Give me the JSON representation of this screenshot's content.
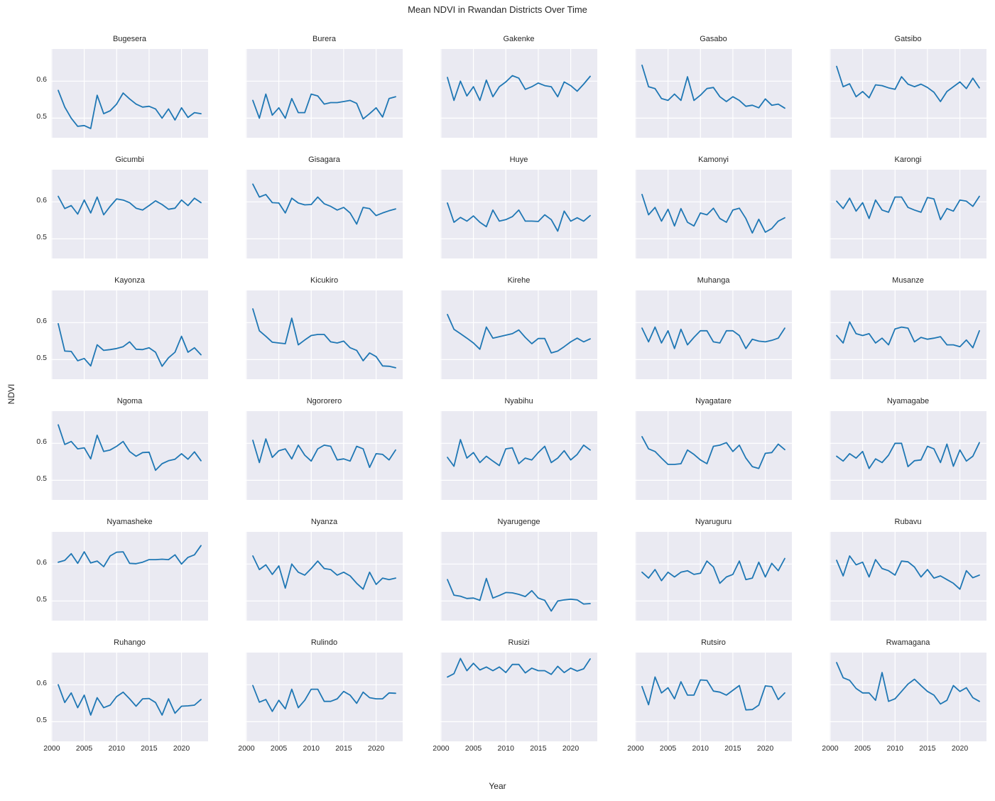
{
  "figure": {
    "title": "Mean NDVI in Rwandan Districts Over Time",
    "xlabel": "Year",
    "ylabel": "NDVI"
  },
  "chart_data": {
    "type": "line",
    "title": "Mean NDVI in Rwandan Districts Over Time",
    "xlabel": "Year",
    "ylabel": "NDVI",
    "layout": "facet-grid 6 rows x 5 cols, shared axes, seaborn darkgrid, grid on, no legend",
    "x_ticks": [
      2000,
      2005,
      2010,
      2015,
      2020
    ],
    "y_ticks": [
      0.6,
      0.5
    ],
    "x_range": [
      1999.9,
      2024.1
    ],
    "y_range": [
      0.447,
      0.687
    ],
    "line_color": "#1f77b4",
    "panel_bg": "#eaeaf2",
    "grid_color": "#ffffff",
    "text_color": "#262626",
    "x": [
      2001,
      2002,
      2003,
      2004,
      2005,
      2006,
      2007,
      2008,
      2009,
      2010,
      2011,
      2012,
      2013,
      2014,
      2015,
      2016,
      2017,
      2018,
      2019,
      2020,
      2021,
      2022,
      2023
    ],
    "series": [
      {
        "name": "Bugesera",
        "values": [
          0.575,
          0.53,
          0.5,
          0.478,
          0.48,
          0.472,
          0.562,
          0.512,
          0.52,
          0.538,
          0.568,
          0.552,
          0.538,
          0.53,
          0.532,
          0.525,
          0.5,
          0.525,
          0.495,
          0.528,
          0.502,
          0.515,
          0.512
        ]
      },
      {
        "name": "Burera",
        "values": [
          0.548,
          0.5,
          0.565,
          0.508,
          0.528,
          0.5,
          0.553,
          0.515,
          0.515,
          0.565,
          0.56,
          0.538,
          0.542,
          0.542,
          0.545,
          0.548,
          0.54,
          0.498,
          0.512,
          0.528,
          0.503,
          0.553,
          0.558
        ]
      },
      {
        "name": "Gakenke",
        "values": [
          0.61,
          0.548,
          0.6,
          0.56,
          0.585,
          0.548,
          0.603,
          0.558,
          0.585,
          0.598,
          0.615,
          0.608,
          0.578,
          0.585,
          0.595,
          0.588,
          0.585,
          0.558,
          0.598,
          0.588,
          0.573,
          0.592,
          0.613
        ]
      },
      {
        "name": "Gasabo",
        "values": [
          0.643,
          0.585,
          0.58,
          0.553,
          0.548,
          0.565,
          0.548,
          0.612,
          0.548,
          0.562,
          0.58,
          0.583,
          0.558,
          0.545,
          0.558,
          0.548,
          0.532,
          0.535,
          0.528,
          0.552,
          0.535,
          0.538,
          0.527
        ]
      },
      {
        "name": "Gatsibo",
        "values": [
          0.64,
          0.585,
          0.593,
          0.558,
          0.572,
          0.555,
          0.59,
          0.588,
          0.582,
          0.578,
          0.612,
          0.592,
          0.585,
          0.592,
          0.583,
          0.57,
          0.545,
          0.572,
          0.585,
          0.598,
          0.58,
          0.608,
          0.582
        ]
      },
      {
        "name": "Gicumbi",
        "values": [
          0.615,
          0.582,
          0.59,
          0.567,
          0.605,
          0.57,
          0.613,
          0.565,
          0.588,
          0.608,
          0.605,
          0.598,
          0.583,
          0.578,
          0.59,
          0.603,
          0.593,
          0.58,
          0.583,
          0.605,
          0.59,
          0.61,
          0.598
        ]
      },
      {
        "name": "Gisagara",
        "values": [
          0.648,
          0.613,
          0.62,
          0.598,
          0.597,
          0.57,
          0.61,
          0.597,
          0.592,
          0.593,
          0.613,
          0.595,
          0.588,
          0.578,
          0.585,
          0.57,
          0.54,
          0.585,
          0.582,
          0.563,
          0.57,
          0.576,
          0.581
        ]
      },
      {
        "name": "Huye",
        "values": [
          0.597,
          0.545,
          0.558,
          0.548,
          0.562,
          0.545,
          0.533,
          0.578,
          0.548,
          0.552,
          0.56,
          0.578,
          0.548,
          0.548,
          0.547,
          0.565,
          0.552,
          0.521,
          0.575,
          0.548,
          0.557,
          0.548,
          0.563
        ]
      },
      {
        "name": "Kamonyi",
        "values": [
          0.62,
          0.565,
          0.585,
          0.548,
          0.58,
          0.535,
          0.582,
          0.545,
          0.535,
          0.57,
          0.565,
          0.583,
          0.555,
          0.545,
          0.578,
          0.583,
          0.555,
          0.516,
          0.553,
          0.518,
          0.528,
          0.548,
          0.557
        ]
      },
      {
        "name": "Karongi",
        "values": [
          0.602,
          0.582,
          0.61,
          0.575,
          0.598,
          0.555,
          0.605,
          0.578,
          0.572,
          0.613,
          0.613,
          0.585,
          0.578,
          0.572,
          0.612,
          0.608,
          0.552,
          0.582,
          0.575,
          0.605,
          0.602,
          0.588,
          0.615
        ]
      },
      {
        "name": "Kayonza",
        "values": [
          0.597,
          0.523,
          0.522,
          0.497,
          0.503,
          0.483,
          0.54,
          0.525,
          0.527,
          0.53,
          0.535,
          0.548,
          0.528,
          0.527,
          0.532,
          0.52,
          0.482,
          0.505,
          0.52,
          0.563,
          0.52,
          0.532,
          0.513
        ]
      },
      {
        "name": "Kicukiro",
        "values": [
          0.637,
          0.578,
          0.563,
          0.547,
          0.545,
          0.543,
          0.612,
          0.54,
          0.553,
          0.565,
          0.568,
          0.568,
          0.548,
          0.545,
          0.55,
          0.532,
          0.525,
          0.497,
          0.518,
          0.508,
          0.483,
          0.482,
          0.478
        ]
      },
      {
        "name": "Kirehe",
        "values": [
          0.622,
          0.582,
          0.57,
          0.558,
          0.545,
          0.528,
          0.588,
          0.558,
          0.562,
          0.566,
          0.57,
          0.58,
          0.56,
          0.543,
          0.557,
          0.557,
          0.518,
          0.523,
          0.535,
          0.548,
          0.558,
          0.548,
          0.556
        ]
      },
      {
        "name": "Muhanga",
        "values": [
          0.585,
          0.548,
          0.588,
          0.545,
          0.578,
          0.53,
          0.582,
          0.54,
          0.56,
          0.578,
          0.578,
          0.548,
          0.545,
          0.578,
          0.578,
          0.565,
          0.53,
          0.555,
          0.55,
          0.548,
          0.552,
          0.558,
          0.585
        ]
      },
      {
        "name": "Musanze",
        "values": [
          0.565,
          0.545,
          0.602,
          0.57,
          0.565,
          0.57,
          0.545,
          0.558,
          0.54,
          0.583,
          0.588,
          0.585,
          0.548,
          0.56,
          0.555,
          0.558,
          0.562,
          0.54,
          0.54,
          0.535,
          0.553,
          0.532,
          0.578
        ]
      },
      {
        "name": "Ngoma",
        "values": [
          0.65,
          0.597,
          0.605,
          0.585,
          0.588,
          0.558,
          0.622,
          0.578,
          0.582,
          0.592,
          0.605,
          0.578,
          0.565,
          0.575,
          0.576,
          0.527,
          0.545,
          0.553,
          0.557,
          0.572,
          0.557,
          0.577,
          0.553
        ]
      },
      {
        "name": "Ngororero",
        "values": [
          0.608,
          0.548,
          0.612,
          0.562,
          0.58,
          0.585,
          0.558,
          0.595,
          0.568,
          0.552,
          0.585,
          0.595,
          0.592,
          0.555,
          0.558,
          0.552,
          0.592,
          0.585,
          0.535,
          0.572,
          0.57,
          0.555,
          0.582
        ]
      },
      {
        "name": "Nyabihu",
        "values": [
          0.562,
          0.538,
          0.61,
          0.56,
          0.575,
          0.548,
          0.565,
          0.552,
          0.54,
          0.585,
          0.588,
          0.545,
          0.56,
          0.555,
          0.575,
          0.592,
          0.548,
          0.56,
          0.58,
          0.555,
          0.57,
          0.595,
          0.582
        ]
      },
      {
        "name": "Nyagatare",
        "values": [
          0.618,
          0.585,
          0.578,
          0.56,
          0.543,
          0.543,
          0.545,
          0.582,
          0.57,
          0.555,
          0.545,
          0.592,
          0.595,
          0.602,
          0.578,
          0.595,
          0.56,
          0.537,
          0.532,
          0.573,
          0.575,
          0.598,
          0.583
        ]
      },
      {
        "name": "Nyamagabe",
        "values": [
          0.565,
          0.552,
          0.572,
          0.56,
          0.578,
          0.532,
          0.558,
          0.548,
          0.568,
          0.6,
          0.6,
          0.537,
          0.553,
          0.555,
          0.592,
          0.585,
          0.548,
          0.598,
          0.538,
          0.582,
          0.552,
          0.565,
          0.602
        ]
      },
      {
        "name": "Nyamasheke",
        "values": [
          0.605,
          0.61,
          0.628,
          0.602,
          0.633,
          0.603,
          0.608,
          0.593,
          0.622,
          0.632,
          0.633,
          0.602,
          0.601,
          0.605,
          0.612,
          0.612,
          0.613,
          0.612,
          0.625,
          0.6,
          0.618,
          0.625,
          0.65
        ]
      },
      {
        "name": "Nyanza",
        "values": [
          0.622,
          0.585,
          0.598,
          0.572,
          0.595,
          0.535,
          0.6,
          0.578,
          0.57,
          0.588,
          0.608,
          0.588,
          0.585,
          0.57,
          0.578,
          0.568,
          0.548,
          0.532,
          0.578,
          0.545,
          0.562,
          0.558,
          0.562
        ]
      },
      {
        "name": "Nyarugenge",
        "values": [
          0.558,
          0.516,
          0.513,
          0.507,
          0.508,
          0.502,
          0.561,
          0.508,
          0.515,
          0.523,
          0.522,
          0.518,
          0.512,
          0.528,
          0.508,
          0.502,
          0.473,
          0.5,
          0.503,
          0.505,
          0.503,
          0.492,
          0.493
        ]
      },
      {
        "name": "Nyaruguru",
        "values": [
          0.578,
          0.562,
          0.585,
          0.555,
          0.578,
          0.565,
          0.578,
          0.582,
          0.572,
          0.575,
          0.608,
          0.592,
          0.548,
          0.565,
          0.572,
          0.608,
          0.558,
          0.562,
          0.605,
          0.565,
          0.602,
          0.582,
          0.615
        ]
      },
      {
        "name": "Rubavu",
        "values": [
          0.61,
          0.568,
          0.622,
          0.598,
          0.605,
          0.565,
          0.612,
          0.588,
          0.582,
          0.57,
          0.608,
          0.606,
          0.592,
          0.565,
          0.585,
          0.562,
          0.568,
          0.558,
          0.548,
          0.532,
          0.582,
          0.563,
          0.57
        ]
      },
      {
        "name": "Ruhango",
        "values": [
          0.6,
          0.552,
          0.578,
          0.538,
          0.572,
          0.518,
          0.565,
          0.538,
          0.545,
          0.568,
          0.58,
          0.562,
          0.542,
          0.562,
          0.563,
          0.552,
          0.518,
          0.562,
          0.523,
          0.542,
          0.543,
          0.545,
          0.56
        ]
      },
      {
        "name": "Rulindo",
        "values": [
          0.598,
          0.553,
          0.56,
          0.528,
          0.558,
          0.535,
          0.588,
          0.538,
          0.558,
          0.588,
          0.588,
          0.555,
          0.555,
          0.562,
          0.582,
          0.572,
          0.55,
          0.58,
          0.565,
          0.562,
          0.562,
          0.578,
          0.577
        ]
      },
      {
        "name": "Rusizi",
        "values": [
          0.621,
          0.63,
          0.671,
          0.638,
          0.658,
          0.64,
          0.648,
          0.638,
          0.648,
          0.633,
          0.655,
          0.655,
          0.632,
          0.645,
          0.638,
          0.638,
          0.628,
          0.65,
          0.633,
          0.645,
          0.637,
          0.643,
          0.67
        ]
      },
      {
        "name": "Rutsiro",
        "values": [
          0.595,
          0.546,
          0.621,
          0.578,
          0.592,
          0.562,
          0.608,
          0.572,
          0.572,
          0.613,
          0.612,
          0.583,
          0.58,
          0.572,
          0.585,
          0.598,
          0.532,
          0.533,
          0.545,
          0.597,
          0.595,
          0.56,
          0.578
        ]
      },
      {
        "name": "Rwamagana",
        "values": [
          0.66,
          0.619,
          0.612,
          0.59,
          0.578,
          0.578,
          0.558,
          0.633,
          0.555,
          0.562,
          0.582,
          0.602,
          0.615,
          0.598,
          0.582,
          0.572,
          0.548,
          0.558,
          0.598,
          0.582,
          0.592,
          0.565,
          0.555
        ]
      }
    ]
  }
}
